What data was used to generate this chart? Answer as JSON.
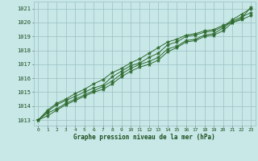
{
  "title": "Graphe pression niveau de la mer (hPa)",
  "bg_color": "#c8e8e8",
  "grid_color": "#9bbfbf",
  "line_color": "#2d6a2d",
  "text_color": "#1a4d1a",
  "xdata": [
    0,
    1,
    2,
    3,
    4,
    5,
    6,
    7,
    8,
    9,
    10,
    11,
    12,
    13,
    14,
    15,
    16,
    17,
    18,
    19,
    20,
    21,
    22,
    23
  ],
  "line1": [
    1013.0,
    1013.3,
    1013.7,
    1014.1,
    1014.4,
    1014.7,
    1015.0,
    1015.2,
    1015.6,
    1016.1,
    1016.5,
    1016.8,
    1017.0,
    1017.3,
    1017.9,
    1018.2,
    1018.6,
    1018.7,
    1019.0,
    1019.1,
    1019.4,
    1020.0,
    1020.2,
    1020.5
  ],
  "line2": [
    1013.0,
    1013.5,
    1013.8,
    1014.2,
    1014.5,
    1014.8,
    1015.1,
    1015.4,
    1015.8,
    1016.3,
    1016.7,
    1017.0,
    1017.2,
    1017.5,
    1018.1,
    1018.3,
    1018.7,
    1018.8,
    1019.1,
    1019.2,
    1019.6,
    1020.1,
    1020.4,
    1020.7
  ],
  "line3": [
    1013.0,
    1013.6,
    1014.1,
    1014.4,
    1014.7,
    1015.0,
    1015.3,
    1015.5,
    1016.1,
    1016.5,
    1016.9,
    1017.1,
    1017.5,
    1017.8,
    1018.4,
    1018.6,
    1019.0,
    1019.1,
    1019.3,
    1019.4,
    1019.7,
    1020.2,
    1020.6,
    1021.0
  ],
  "line4": [
    1013.0,
    1013.7,
    1014.2,
    1014.5,
    1014.9,
    1015.2,
    1015.6,
    1015.9,
    1016.4,
    1016.7,
    1017.1,
    1017.4,
    1017.8,
    1018.2,
    1018.6,
    1018.8,
    1019.1,
    1019.2,
    1019.4,
    1019.5,
    1019.8,
    1020.0,
    1020.3,
    1021.1
  ],
  "ylim": [
    1012.6,
    1021.5
  ],
  "yticks": [
    1013,
    1014,
    1015,
    1016,
    1017,
    1018,
    1019,
    1020,
    1021
  ],
  "xticks": [
    0,
    1,
    2,
    3,
    4,
    5,
    6,
    7,
    8,
    9,
    10,
    11,
    12,
    13,
    14,
    15,
    16,
    17,
    18,
    19,
    20,
    21,
    22,
    23
  ]
}
